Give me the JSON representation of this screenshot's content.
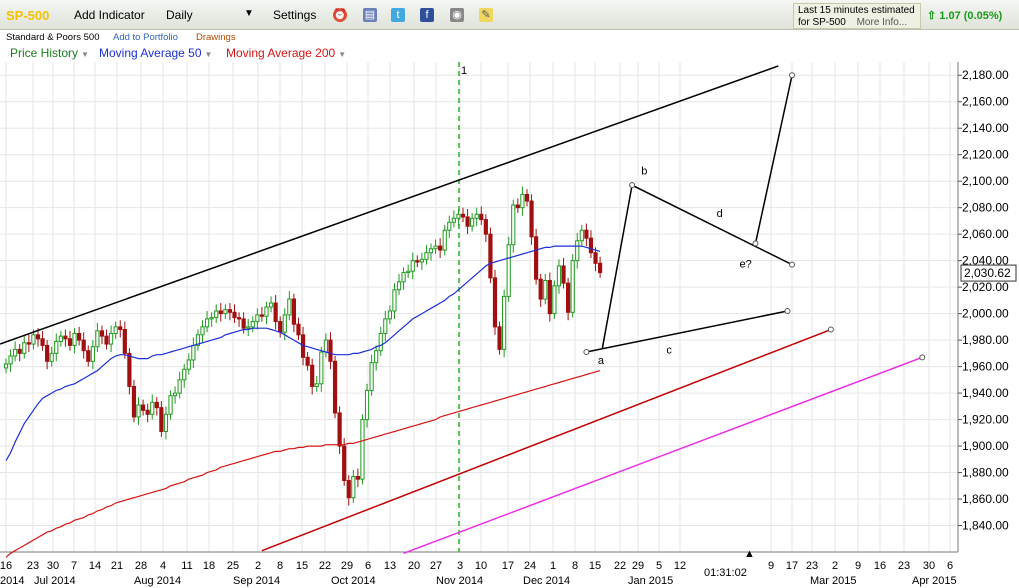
{
  "toolbar": {
    "symbol": "SP-500",
    "add_indicator": "Add Indicator",
    "interval": "Daily",
    "settings": "Settings",
    "notice_line1": "Last 15 minutes estimated",
    "notice_line2": "for SP-500",
    "more_info": "More Info...",
    "quote_change": "1.07 (0.05%)"
  },
  "subheader": {
    "name": "Standard & Poors 500",
    "add_portfolio": "Add to Portfolio",
    "drawings": "Drawings"
  },
  "indicators": {
    "price_history": "Price History",
    "ma50": "Moving Average 50",
    "ma200": "Moving Average 200"
  },
  "chart_data": {
    "type": "candlestick",
    "last_price_label": "2,030.62",
    "time_label": "01:31:02",
    "ylim": [
      1820,
      2190
    ],
    "y_ticks": [
      1840,
      1860,
      1880,
      1900,
      1920,
      1940,
      1960,
      1980,
      2000,
      2020,
      2040,
      2060,
      2080,
      2100,
      2120,
      2140,
      2160,
      2180
    ],
    "y_tick_labels": [
      "1,840.00",
      "1,860.00",
      "1,880.00",
      "1,900.00",
      "1,920.00",
      "1,940.00",
      "1,960.00",
      "1,980.00",
      "2,000.00",
      "2,020.00",
      "2,040.00",
      "2,060.00",
      "2,080.00",
      "2,100.00",
      "2,120.00",
      "2,140.00",
      "2,160.00",
      "2,180.00"
    ],
    "x_day_labels": [
      "16",
      "23",
      "30",
      "7",
      "14",
      "21",
      "28",
      "4",
      "11",
      "18",
      "25",
      "2",
      "8",
      "15",
      "22",
      "29",
      "6",
      "13",
      "20",
      "27",
      "3",
      "10",
      "17",
      "24",
      "1",
      "8",
      "15",
      "22",
      "29",
      "5",
      "12",
      "9",
      "17",
      "23",
      "2",
      "9",
      "16",
      "23",
      "30",
      "6"
    ],
    "months": [
      "2014",
      "Jul 2014",
      "Aug 2014",
      "Sep 2014",
      "Oct 2014",
      "Nov 2014",
      "Dec 2014",
      "Jan 2015",
      "Mar 2015",
      "Apr 2015"
    ],
    "marker": "1",
    "wave_labels": [
      "a",
      "b",
      "c",
      "d",
      "e?"
    ],
    "colors": {
      "up": "#1f9a1f",
      "down": "#a01010",
      "ma50": "#1c2fd6",
      "ma200": "#d41414",
      "channel": "#000000",
      "red_line": "#c00000",
      "magenta_line": "#ee2be6",
      "marker": "#2ab52a"
    },
    "prices": [
      1962,
      1968,
      1973,
      1970,
      1978,
      1977,
      1984,
      1981,
      1976,
      1964,
      1970,
      1979,
      1983,
      1981,
      1976,
      1985,
      1980,
      1972,
      1964,
      1975,
      1987,
      1983,
      1977,
      1985,
      1990,
      1988,
      1970,
      1945,
      1922,
      1931,
      1927,
      1924,
      1933,
      1929,
      1911,
      1924,
      1938,
      1940,
      1950,
      1958,
      1965,
      1976,
      1984,
      1990,
      1996,
      1997,
      2002,
      2000,
      2003,
      2001,
      1997,
      1996,
      1989,
      1990,
      1994,
      1999,
      1998,
      2005,
      2008,
      1994,
      1986,
      1999,
      2011,
      1992,
      1984,
      1967,
      1961,
      1945,
      1947,
      1971,
      1980,
      1964,
      1925,
      1900,
      1874,
      1861,
      1877,
      1875,
      1920,
      1942,
      1963,
      1972,
      1985,
      1996,
      2002,
      2018,
      2024,
      2031,
      2032,
      2040,
      2039,
      2041,
      2046,
      2049,
      2051,
      2048,
      2063,
      2069,
      2072,
      2075,
      2073,
      2066,
      2072,
      2075,
      2071,
      2060,
      2027,
      1990,
      1973,
      2013,
      2052,
      2082,
      2080,
      2090,
      2085,
      2058,
      2026,
      2011,
      2025,
      2000,
      2021,
      2036,
      2023,
      2001,
      2040,
      2055,
      2063,
      2057,
      2046,
      2038,
      2031
    ],
    "ma50": [
      1889,
      1895,
      1903,
      1910,
      1917,
      1922,
      1927,
      1932,
      1936,
      1938,
      1940,
      1942,
      1943,
      1945,
      1946,
      1947,
      1949,
      1951,
      1953,
      1955,
      1957,
      1960,
      1963,
      1966,
      1968,
      1969,
      1969,
      1968,
      1967,
      1966,
      1966,
      1966,
      1968,
      1969,
      1969,
      1970,
      1971,
      1972,
      1973,
      1974,
      1975,
      1976,
      1977,
      1978,
      1979,
      1980,
      1981,
      1982,
      1984,
      1985,
      1986,
      1987,
      1988,
      1988,
      1989,
      1989,
      1989,
      1989,
      1988,
      1987,
      1986,
      1984,
      1982,
      1980,
      1978,
      1976,
      1975,
      1974,
      1973,
      1972,
      1971,
      1970,
      1969,
      1969,
      1969,
      1969,
      1970,
      1970,
      1971,
      1972,
      1973,
      1975,
      1976,
      1978,
      1981,
      1984,
      1987,
      1990,
      1993,
      1996,
      1998,
      2000,
      2002,
      2004,
      2006,
      2008,
      2010,
      2013,
      2015,
      2018,
      2021,
      2024,
      2027,
      2030,
      2033,
      2036,
      2038,
      2039,
      2040,
      2041,
      2042,
      2043,
      2044,
      2045,
      2046,
      2047,
      2048,
      2049,
      2050,
      2050,
      2051,
      2051,
      2051,
      2051,
      2051,
      2051,
      2051,
      2050,
      2049,
      2048,
      2047
    ],
    "ma200": [
      1816,
      1819,
      1821,
      1823,
      1825,
      1827,
      1829,
      1831,
      1833,
      1835,
      1836,
      1838,
      1839,
      1841,
      1842,
      1844,
      1845,
      1846,
      1848,
      1849,
      1851,
      1852,
      1854,
      1855,
      1857,
      1858,
      1859,
      1860,
      1861,
      1862,
      1863,
      1864,
      1865,
      1866,
      1867,
      1868,
      1870,
      1871,
      1872,
      1873,
      1875,
      1876,
      1877,
      1878,
      1880,
      1881,
      1882,
      1884,
      1885,
      1886,
      1887,
      1888,
      1889,
      1890,
      1891,
      1892,
      1893,
      1894,
      1895,
      1896,
      1896,
      1897,
      1898,
      1898,
      1899,
      1899,
      1900,
      1900,
      1900,
      1900,
      1901,
      1901,
      1901,
      1901,
      1901,
      1902,
      1902,
      1903,
      1904,
      1905,
      1906,
      1907,
      1908,
      1909,
      1910,
      1911,
      1912,
      1913,
      1914,
      1915,
      1916,
      1917,
      1918,
      1919,
      1920,
      1922,
      1923,
      1924,
      1925,
      1926,
      1927,
      1928,
      1929,
      1930,
      1931,
      1932,
      1933,
      1934,
      1935,
      1936,
      1937,
      1938,
      1939,
      1940,
      1941,
      1942,
      1943,
      1944,
      1945,
      1946,
      1947,
      1948,
      1949,
      1950,
      1951,
      1952,
      1953,
      1954,
      1955,
      1956,
      1957
    ]
  }
}
